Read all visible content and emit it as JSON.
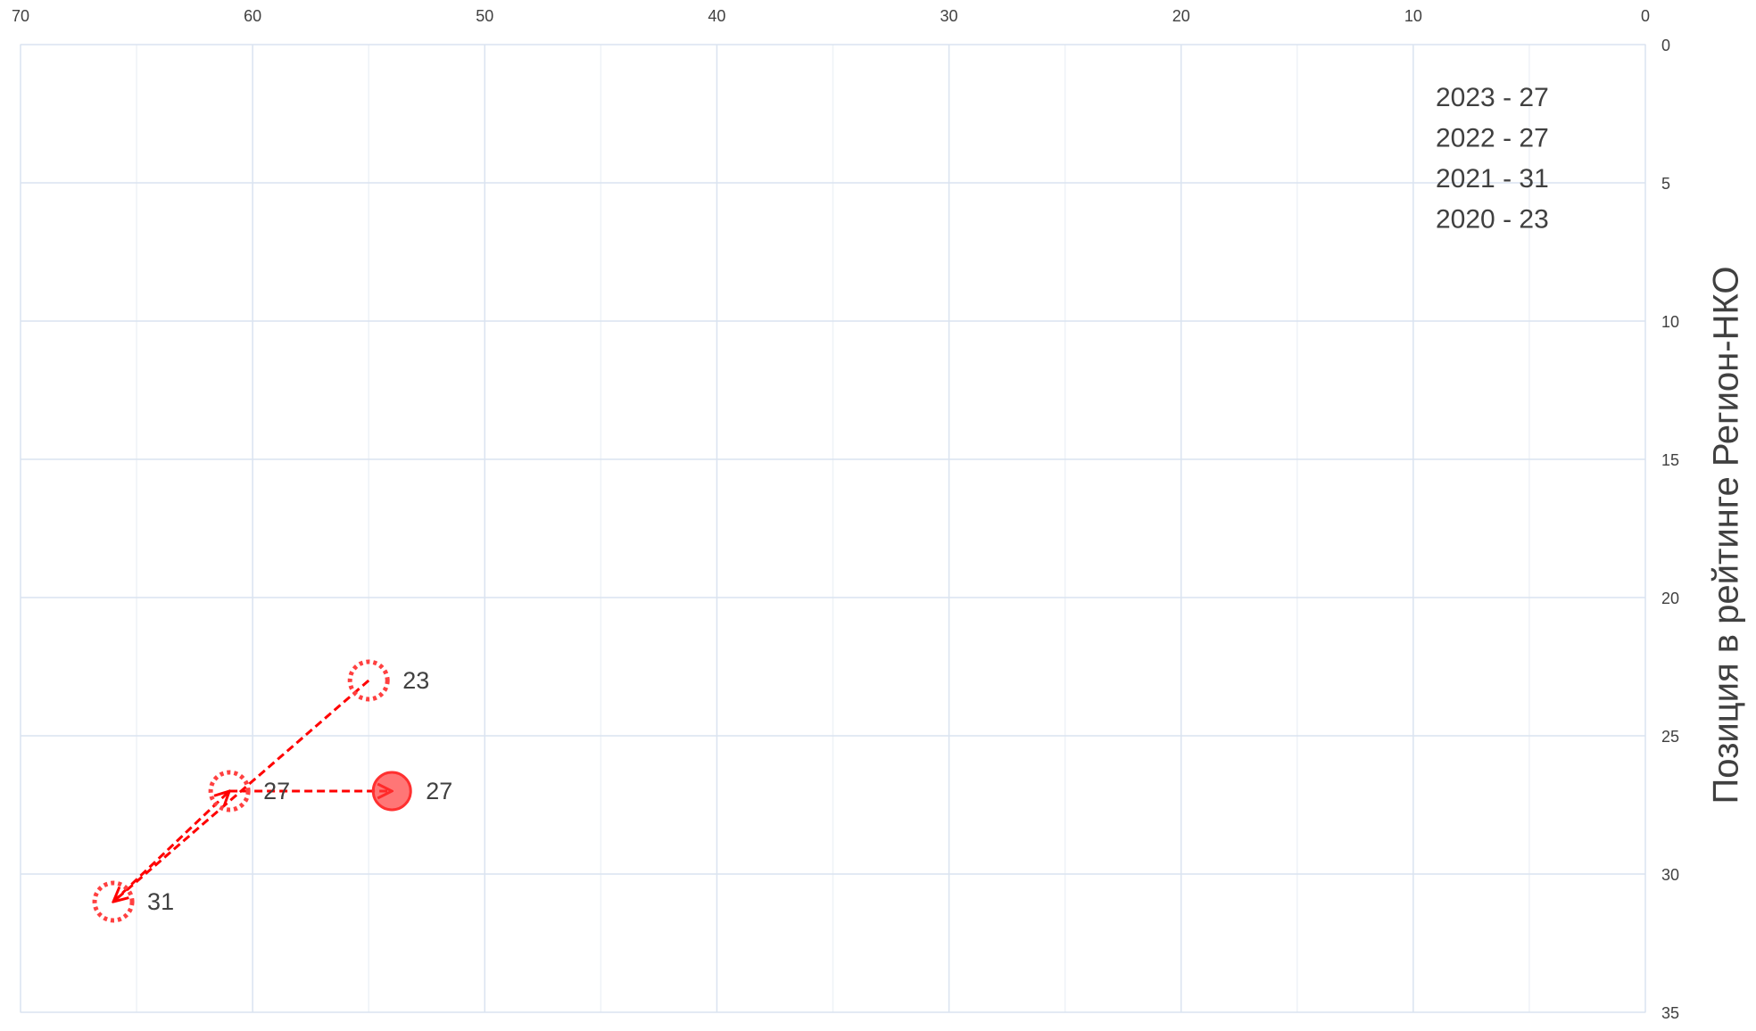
{
  "chart_data": {
    "type": "scatter",
    "ylabel": "Позиция в рейтинге Регион-НКО",
    "x": [
      55,
      66,
      61,
      54
    ],
    "values": [
      23,
      31,
      27,
      27
    ],
    "color": "#ff0000",
    "xlim": [
      70,
      0
    ],
    "xticks": [
      70,
      60,
      50,
      40,
      30,
      20,
      10,
      0
    ],
    "ylim": [
      35,
      0
    ],
    "yticks": [
      0,
      5,
      10,
      15,
      20,
      25,
      30,
      35
    ],
    "grid": true,
    "annotations": [
      "2023 - 27",
      "2022 - 27",
      "2021 - 31",
      "2020 - 23"
    ]
  }
}
